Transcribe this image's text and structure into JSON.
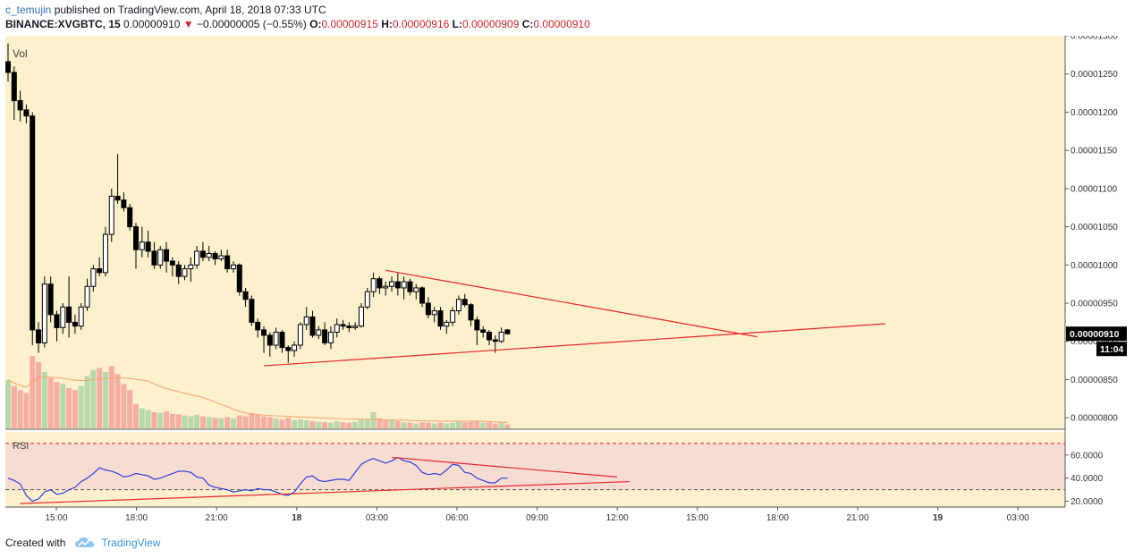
{
  "header": {
    "author": "c_temujin",
    "published": "published on TradingView.com, April 18, 2018 07:33 UTC",
    "symbol": "BINANCE:XVGBTC, 15",
    "last": "0.00000910",
    "arrow": "▼",
    "change": "−0.00000005 (−0.55%)",
    "o_label": "O:",
    "o_value": "0.00000915",
    "h_label": "H:",
    "h_value": "0.00000916",
    "l_label": "L:",
    "l_value": "0.00000909",
    "c_label": "C:",
    "c_value": "0.00000910"
  },
  "footer": {
    "created_with": "Created with",
    "brand": "TradingView"
  },
  "colors": {
    "background": "#fdf0cc",
    "rsi_background": "#f7dcd2",
    "candle_up": "#ffffff",
    "candle_down": "#000000",
    "volume_up": "#b9d8ab",
    "volume_down": "#f3aea6",
    "volume_ma": "#f5a46b",
    "rsi_line": "#2f3fd9",
    "trendline": "#e8282c",
    "price_badge": "#000000"
  },
  "chart_data": [
    {
      "type": "candlestick",
      "pane": "price",
      "indicator_label": "Vol",
      "x_ticks": [
        "15:00",
        "18:00",
        "21:00",
        "18",
        "03:00",
        "06:00",
        "09:00",
        "12:00",
        "15:00",
        "18:00",
        "21:00",
        "19",
        "03:00"
      ],
      "y_ticks": [
        "0.00001300",
        "0.00001250",
        "0.00001200",
        "0.00001150",
        "0.00001100",
        "0.00001050",
        "0.00001000",
        "0.00000950",
        "0.00000900",
        "0.00000850",
        "0.00000800"
      ],
      "ylim": [
        7.85e-06,
        1.3e-05
      ],
      "current_price": "0.00000910",
      "countdown": "11:04",
      "candles": [
        [
          1266,
          1290,
          1240,
          1252
        ],
        [
          1252,
          1260,
          1190,
          1215
        ],
        [
          1215,
          1228,
          1188,
          1203
        ],
        [
          1203,
          1210,
          1185,
          1195
        ],
        [
          1195,
          1200,
          895,
          915
        ],
        [
          915,
          925,
          885,
          898
        ],
        [
          898,
          985,
          892,
          975
        ],
        [
          975,
          985,
          925,
          935
        ],
        [
          935,
          940,
          900,
          918
        ],
        [
          918,
          950,
          910,
          945
        ],
        [
          945,
          985,
          905,
          925
        ],
        [
          925,
          935,
          910,
          920
        ],
        [
          920,
          950,
          915,
          945
        ],
        [
          945,
          982,
          940,
          972
        ],
        [
          972,
          1000,
          965,
          995
        ],
        [
          995,
          1010,
          985,
          990
        ],
        [
          990,
          1050,
          985,
          1040
        ],
        [
          1040,
          1100,
          1030,
          1090
        ],
        [
          1090,
          1145,
          1080,
          1085
        ],
        [
          1085,
          1095,
          1070,
          1075
        ],
        [
          1075,
          1080,
          1045,
          1050
        ],
        [
          1050,
          1055,
          995,
          1020
        ],
        [
          1020,
          1050,
          1010,
          1030
        ],
        [
          1030,
          1045,
          1010,
          1018
        ],
        [
          1018,
          1030,
          995,
          1000
        ],
        [
          1000,
          1025,
          995,
          1020
        ],
        [
          1020,
          1030,
          990,
          1005
        ],
        [
          1005,
          1010,
          985,
          1000
        ],
        [
          1000,
          1005,
          975,
          985
        ],
        [
          985,
          1000,
          980,
          995
        ],
        [
          995,
          1010,
          978,
          1000
        ],
        [
          1000,
          1025,
          995,
          1018
        ],
        [
          1018,
          1030,
          1005,
          1010
        ],
        [
          1010,
          1025,
          1005,
          1015
        ],
        [
          1015,
          1018,
          1000,
          1008
        ],
        [
          1008,
          1020,
          1005,
          1012
        ],
        [
          1012,
          1020,
          990,
          995
        ],
        [
          995,
          1005,
          990,
          1000
        ],
        [
          1000,
          1002,
          960,
          965
        ],
        [
          965,
          970,
          945,
          955
        ],
        [
          955,
          960,
          920,
          925
        ],
        [
          925,
          930,
          905,
          915
        ],
        [
          915,
          920,
          885,
          908
        ],
        [
          908,
          912,
          880,
          895
        ],
        [
          895,
          918,
          890,
          912
        ],
        [
          912,
          915,
          885,
          892
        ],
        [
          892,
          895,
          872,
          888
        ],
        [
          888,
          900,
          880,
          895
        ],
        [
          895,
          925,
          890,
          922
        ],
        [
          922,
          945,
          915,
          932
        ],
        [
          932,
          940,
          905,
          908
        ],
        [
          908,
          920,
          903,
          915
        ],
        [
          915,
          925,
          895,
          898
        ],
        [
          898,
          920,
          890,
          912
        ],
        [
          912,
          930,
          905,
          922
        ],
        [
          922,
          928,
          915,
          920
        ],
        [
          920,
          925,
          912,
          918
        ],
        [
          918,
          925,
          915,
          920
        ],
        [
          920,
          950,
          918,
          945
        ],
        [
          945,
          970,
          942,
          965
        ],
        [
          965,
          990,
          958,
          982
        ],
        [
          982,
          985,
          962,
          970
        ],
        [
          970,
          978,
          960,
          972
        ],
        [
          972,
          985,
          965,
          978
        ],
        [
          978,
          990,
          960,
          970
        ],
        [
          970,
          985,
          955,
          978
        ],
        [
          978,
          982,
          960,
          965
        ],
        [
          965,
          975,
          955,
          970
        ],
        [
          970,
          972,
          945,
          950
        ],
        [
          950,
          958,
          930,
          935
        ],
        [
          935,
          945,
          925,
          940
        ],
        [
          940,
          945,
          915,
          920
        ],
        [
          920,
          928,
          910,
          925
        ],
        [
          925,
          945,
          920,
          940
        ],
        [
          940,
          960,
          935,
          955
        ],
        [
          955,
          962,
          945,
          948
        ],
        [
          948,
          950,
          920,
          928
        ],
        [
          928,
          932,
          895,
          915
        ],
        [
          915,
          920,
          905,
          912
        ],
        [
          912,
          915,
          895,
          902
        ],
        [
          902,
          908,
          885,
          900
        ],
        [
          900,
          918,
          898,
          912
        ],
        [
          915,
          916,
          909,
          910
        ]
      ],
      "volumes": [
        [
          120,
          0
        ],
        [
          105,
          1
        ],
        [
          95,
          1
        ],
        [
          88,
          1
        ],
        [
          180,
          1
        ],
        [
          165,
          1
        ],
        [
          140,
          0
        ],
        [
          125,
          1
        ],
        [
          115,
          1
        ],
        [
          110,
          0
        ],
        [
          100,
          1
        ],
        [
          95,
          1
        ],
        [
          105,
          0
        ],
        [
          130,
          0
        ],
        [
          145,
          0
        ],
        [
          150,
          1
        ],
        [
          140,
          0
        ],
        [
          155,
          1
        ],
        [
          135,
          1
        ],
        [
          110,
          1
        ],
        [
          95,
          1
        ],
        [
          60,
          1
        ],
        [
          50,
          0
        ],
        [
          45,
          0
        ],
        [
          40,
          1
        ],
        [
          38,
          0
        ],
        [
          42,
          1
        ],
        [
          36,
          1
        ],
        [
          35,
          1
        ],
        [
          32,
          0
        ],
        [
          30,
          0
        ],
        [
          34,
          0
        ],
        [
          30,
          1
        ],
        [
          28,
          0
        ],
        [
          26,
          1
        ],
        [
          25,
          0
        ],
        [
          28,
          1
        ],
        [
          24,
          0
        ],
        [
          32,
          1
        ],
        [
          30,
          1
        ],
        [
          38,
          1
        ],
        [
          35,
          1
        ],
        [
          30,
          1
        ],
        [
          28,
          1
        ],
        [
          24,
          0
        ],
        [
          22,
          1
        ],
        [
          26,
          1
        ],
        [
          20,
          0
        ],
        [
          22,
          0
        ],
        [
          20,
          0
        ],
        [
          18,
          1
        ],
        [
          16,
          0
        ],
        [
          15,
          1
        ],
        [
          14,
          0
        ],
        [
          18,
          0
        ],
        [
          15,
          1
        ],
        [
          14,
          1
        ],
        [
          16,
          0
        ],
        [
          22,
          0
        ],
        [
          24,
          0
        ],
        [
          40,
          0
        ],
        [
          25,
          1
        ],
        [
          20,
          1
        ],
        [
          22,
          0
        ],
        [
          18,
          1
        ],
        [
          15,
          0
        ],
        [
          14,
          1
        ],
        [
          12,
          0
        ],
        [
          15,
          1
        ],
        [
          14,
          1
        ],
        [
          12,
          0
        ],
        [
          14,
          1
        ],
        [
          12,
          0
        ],
        [
          14,
          0
        ],
        [
          18,
          0
        ],
        [
          15,
          1
        ],
        [
          16,
          1
        ],
        [
          18,
          1
        ],
        [
          14,
          0
        ],
        [
          15,
          1
        ],
        [
          12,
          1
        ],
        [
          14,
          0
        ],
        [
          10,
          1
        ]
      ],
      "trendlines": [
        {
          "from": [
            62,
            993
          ],
          "to": [
            123,
            906
          ]
        },
        {
          "from": [
            42,
            868
          ],
          "to": [
            144,
            923
          ]
        }
      ]
    },
    {
      "type": "line",
      "pane": "rsi",
      "label": "RSI",
      "y_ticks": [
        "60.0000",
        "40.0000",
        "20.0000"
      ],
      "ylim": [
        15,
        80
      ],
      "bands": [
        70,
        30
      ],
      "values": [
        40,
        38,
        35,
        25,
        20,
        22,
        28,
        30,
        26,
        27,
        30,
        32,
        37,
        40,
        44,
        49,
        47,
        46,
        44,
        41,
        42,
        44,
        43,
        42,
        39,
        40,
        42,
        44,
        46,
        46,
        45,
        41,
        40,
        34,
        32,
        31,
        30,
        28,
        29,
        30,
        29,
        31,
        30,
        30,
        28,
        26,
        25,
        28,
        35,
        41,
        42,
        38,
        37,
        38,
        39,
        39,
        38,
        45,
        52,
        55,
        57,
        55,
        53,
        55,
        58,
        55,
        54,
        51,
        45,
        43,
        44,
        43,
        47,
        52,
        51,
        45,
        44,
        40,
        38,
        36,
        36,
        40,
        40
      ],
      "trendlines": [
        {
          "from": [
            63,
            58
          ],
          "to": [
            100,
            41
          ]
        },
        {
          "from": [
            2,
            18
          ],
          "to": [
            102,
            37
          ]
        }
      ]
    }
  ]
}
